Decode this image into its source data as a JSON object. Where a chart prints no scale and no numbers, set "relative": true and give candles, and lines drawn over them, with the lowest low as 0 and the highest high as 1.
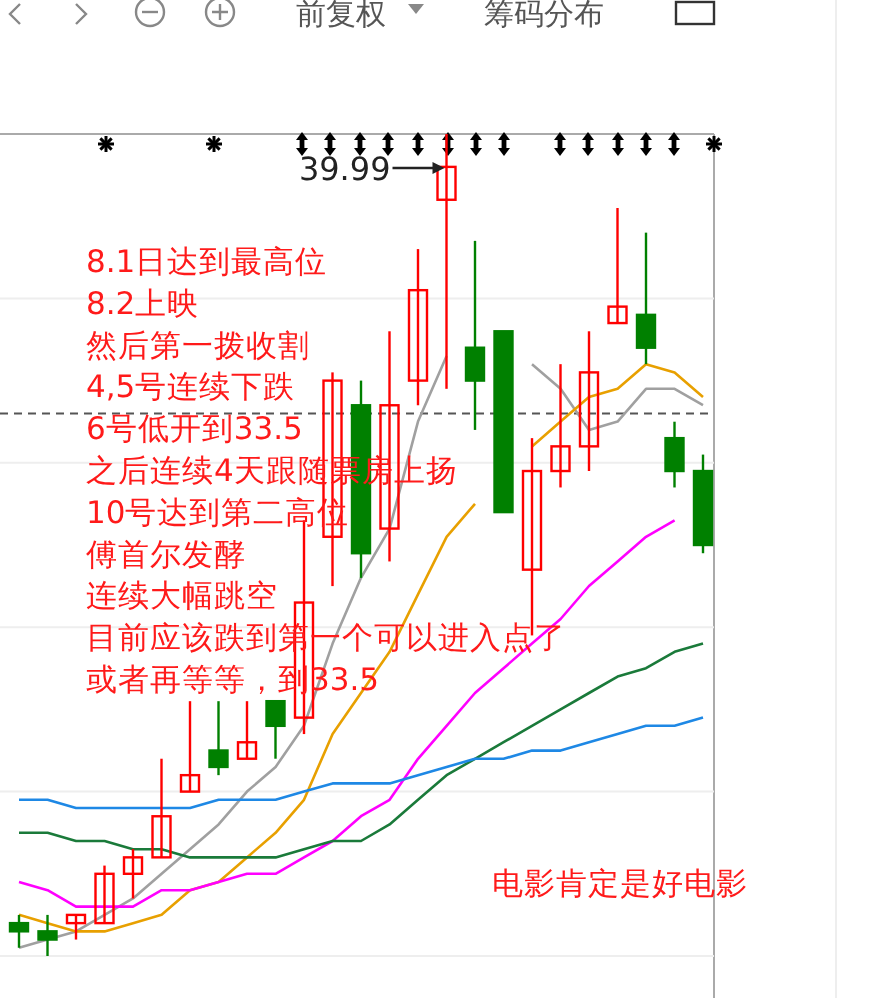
{
  "chart_data": {
    "type": "candlestick",
    "relative": true,
    "categories": [
      null,
      null,
      null,
      null,
      null,
      null,
      null,
      null,
      null,
      null,
      null,
      null,
      null,
      null,
      null,
      null,
      null,
      null,
      null,
      null,
      null,
      null,
      null,
      null,
      null
    ],
    "ohlc": [
      [
        0.04,
        0.05,
        0.01,
        0.03
      ],
      [
        0.03,
        0.05,
        0,
        0.02
      ],
      [
        0.04,
        0.05,
        0.02,
        0.05
      ],
      [
        0.04,
        0.11,
        0.04,
        0.1
      ],
      [
        0.1,
        0.13,
        0.07,
        0.12
      ],
      [
        0.12,
        0.24,
        0.12,
        0.17
      ],
      [
        0.2,
        0.31,
        0.2,
        0.22
      ],
      [
        0.25,
        0.31,
        0.22,
        0.23
      ],
      [
        0.24,
        0.31,
        0.24,
        0.26
      ],
      [
        0.31,
        0.31,
        0.24,
        0.28
      ],
      [
        0.29,
        0.53,
        0.27,
        0.43
      ],
      [
        0.51,
        0.71,
        0.45,
        0.7
      ],
      [
        0.67,
        0.7,
        0.46,
        0.49
      ],
      [
        0.52,
        0.76,
        0.48,
        0.67
      ],
      [
        0.7,
        0.86,
        0.67,
        0.81
      ],
      [
        0.92,
        1,
        0.69,
        0.96
      ],
      [
        0.74,
        0.87,
        0.64,
        0.7
      ],
      [
        0.76,
        0.76,
        0.54,
        0.54
      ],
      [
        0.47,
        0.63,
        0.39,
        0.59
      ],
      [
        0.59,
        0.72,
        0.57,
        0.62
      ],
      [
        0.62,
        0.76,
        0.59,
        0.71
      ],
      [
        0.77,
        0.91,
        0.77,
        0.79
      ],
      [
        0.78,
        0.88,
        0.72,
        0.74
      ],
      [
        0.63,
        0.65,
        0.57,
        0.59
      ],
      [
        0.59,
        0.61,
        0.49,
        0.5
      ]
    ],
    "colors": [
      "#008000",
      "#008000",
      "#ff0000",
      "#ff0000",
      "#ff0000",
      "#ff0000",
      "#ff0000",
      "#008000",
      "#ff0000",
      "#008000",
      "#ff0000",
      "#ff0000",
      "#008000",
      "#ff0000",
      "#ff0000",
      "#ff0000",
      "#008000",
      "#008000",
      "#ff0000",
      "#ff0000",
      "#ff0000",
      "#ff0000",
      "#008000",
      "#008000",
      "#008000"
    ],
    "series": [
      {
        "type": "line",
        "color": "#a0a0a0",
        "values": [
          0.01,
          0.02,
          0.03,
          0.05,
          0.07,
          0.1,
          0.13,
          0.16,
          0.2,
          0.23,
          0.28,
          0.38,
          0.46,
          0.52,
          0.65,
          0.73,
          null,
          null,
          0.72,
          0.69,
          0.64,
          0.65,
          0.69,
          0.69,
          0.67
        ]
      },
      {
        "type": "line",
        "color": "#e8a000",
        "values": [
          0.05,
          0.04,
          0.03,
          0.03,
          0.04,
          0.05,
          0.08,
          0.09,
          0.12,
          0.15,
          0.19,
          0.27,
          0.32,
          0.37,
          0.44,
          0.51,
          0.55,
          null,
          0.62,
          0.65,
          0.68,
          0.69,
          0.72,
          0.71,
          0.68
        ]
      },
      {
        "type": "line",
        "color": "#ff00ff",
        "values": [
          0.09,
          0.08,
          0.06,
          0.06,
          0.06,
          0.08,
          0.08,
          0.09,
          0.1,
          0.1,
          0.12,
          0.14,
          0.17,
          0.19,
          0.24,
          0.28,
          0.32,
          0.35,
          0.38,
          0.41,
          0.45,
          0.48,
          0.51,
          0.53,
          null
        ]
      },
      {
        "type": "line",
        "color": "#1a7a3a",
        "values": [
          0.15,
          0.15,
          0.14,
          0.14,
          0.13,
          0.13,
          0.12,
          0.12,
          0.12,
          0.12,
          0.13,
          0.14,
          0.14,
          0.16,
          0.19,
          0.22,
          0.24,
          0.26,
          0.28,
          0.3,
          0.32,
          0.34,
          0.35,
          0.37,
          0.38
        ]
      },
      {
        "type": "line",
        "color": "#1e88e5",
        "values": [
          0.19,
          0.19,
          0.18,
          0.18,
          0.18,
          0.18,
          0.18,
          0.19,
          0.19,
          0.19,
          0.2,
          0.21,
          0.21,
          0.21,
          0.22,
          0.23,
          0.24,
          0.24,
          0.25,
          0.25,
          0.26,
          0.27,
          0.28,
          0.28,
          0.29
        ]
      }
    ],
    "ref_lines": [
      {
        "axis": "y",
        "value": 0.66,
        "line_style": "dashed",
        "color": "#555555"
      }
    ],
    "grid": "y",
    "annotations": [
      "39.99",
      "8.1日达到最高位",
      "8.2上映",
      "然后第一拨收割",
      "4,5号连续下跌",
      "6号低开到33.5",
      "之后连续4天跟随票房上扬",
      "10号达到第二高位",
      "傅首尔发酵",
      "连续大幅跳空",
      "目前应该跌到第一个可以进入点了",
      "或者再等等，到33.5",
      "电影肯定是好电影",
      "前复权",
      "筹码分布"
    ]
  }
}
